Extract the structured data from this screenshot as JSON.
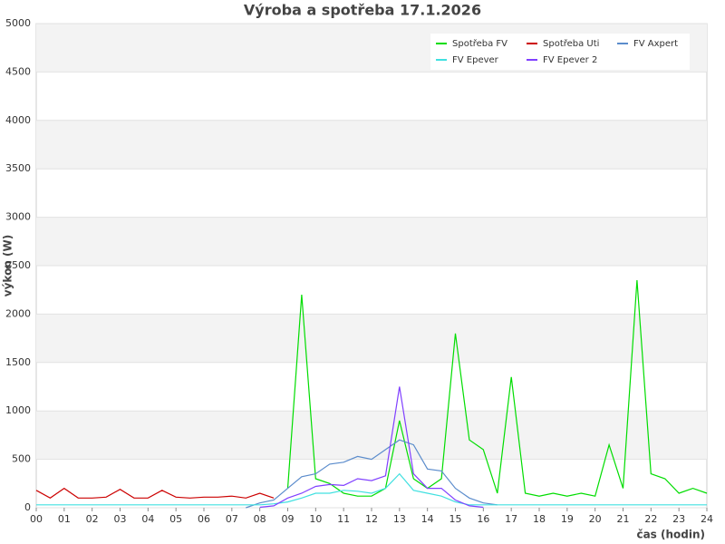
{
  "chart_data": {
    "type": "line",
    "title": "Výroba a spotřeba 17.1.2026",
    "x_label": "čas (hodin)",
    "y_label": "výkon (W)",
    "x": [
      0,
      0.5,
      1,
      1.5,
      2,
      2.5,
      3,
      3.5,
      4,
      4.5,
      5,
      5.5,
      6,
      6.5,
      7,
      7.5,
      8,
      8.5,
      9,
      9.5,
      10,
      10.5,
      11,
      11.5,
      12,
      12.5,
      13,
      13.5,
      14,
      14.5,
      15,
      15.5,
      16,
      16.5,
      17,
      17.5,
      18,
      18.5,
      19,
      19.5,
      20,
      20.5,
      21,
      21.5,
      22,
      22.5,
      23,
      23.5,
      24
    ],
    "series": [
      {
        "name": "Spotřeba FV",
        "color": "#00dd00",
        "values": [
          null,
          null,
          null,
          null,
          null,
          null,
          null,
          null,
          null,
          null,
          null,
          null,
          null,
          null,
          null,
          null,
          null,
          null,
          200,
          2200,
          300,
          250,
          150,
          120,
          120,
          200,
          900,
          300,
          200,
          300,
          1800,
          700,
          600,
          150,
          1350,
          150,
          120,
          150,
          120,
          150,
          120,
          650,
          200,
          2350,
          350,
          300,
          150,
          200,
          150
        ]
      },
      {
        "name": "Spotřeba Uti",
        "color": "#cc0000",
        "values": [
          180,
          100,
          200,
          100,
          100,
          110,
          190,
          100,
          100,
          180,
          110,
          100,
          110,
          110,
          120,
          100,
          150,
          100,
          null,
          null,
          null,
          null,
          null,
          null,
          null,
          null,
          null,
          null,
          null,
          null,
          null,
          null,
          null,
          null,
          null,
          null,
          null,
          null,
          null,
          null,
          null,
          null,
          null,
          null,
          null,
          null,
          null,
          null,
          null
        ]
      },
      {
        "name": "FV Axpert",
        "color": "#5b8ccc",
        "values": [
          null,
          null,
          null,
          null,
          null,
          null,
          null,
          null,
          null,
          null,
          null,
          null,
          null,
          null,
          null,
          0,
          50,
          80,
          200,
          320,
          350,
          450,
          470,
          530,
          500,
          600,
          700,
          650,
          400,
          380,
          200,
          100,
          50,
          30,
          null,
          null,
          null,
          null,
          null,
          null,
          null,
          null,
          null,
          null,
          null,
          null,
          null,
          null,
          null
        ]
      },
      {
        "name": "FV Epever",
        "color": "#40e0e0",
        "values": [
          30,
          30,
          30,
          30,
          30,
          30,
          30,
          30,
          30,
          30,
          30,
          30,
          30,
          30,
          30,
          30,
          30,
          40,
          60,
          100,
          150,
          150,
          180,
          170,
          150,
          200,
          350,
          180,
          150,
          120,
          60,
          30,
          30,
          30,
          30,
          30,
          30,
          30,
          30,
          30,
          30,
          30,
          30,
          30,
          30,
          30,
          30,
          30,
          30
        ]
      },
      {
        "name": "FV Epever 2",
        "color": "#8040ff",
        "values": [
          null,
          null,
          null,
          null,
          null,
          null,
          null,
          null,
          null,
          null,
          null,
          null,
          null,
          null,
          null,
          null,
          5,
          20,
          100,
          150,
          220,
          240,
          230,
          300,
          280,
          330,
          1250,
          350,
          200,
          200,
          80,
          20,
          5,
          null,
          null,
          null,
          null,
          null,
          null,
          null,
          null,
          null,
          null,
          null,
          null,
          null,
          null,
          null,
          null
        ]
      }
    ],
    "xlim": [
      0,
      24
    ],
    "xticks": [
      {
        "value": 0,
        "label": "00"
      },
      {
        "value": 1,
        "label": "01"
      },
      {
        "value": 2,
        "label": "02"
      },
      {
        "value": 3,
        "label": "03"
      },
      {
        "value": 4,
        "label": "04"
      },
      {
        "value": 5,
        "label": "05"
      },
      {
        "value": 6,
        "label": "06"
      },
      {
        "value": 7,
        "label": "07"
      },
      {
        "value": 8,
        "label": "08"
      },
      {
        "value": 9,
        "label": "09"
      },
      10,
      11,
      12,
      13,
      14,
      15,
      16,
      17,
      18,
      19,
      20,
      21,
      22,
      23,
      24
    ],
    "ylim": [
      0,
      5000
    ],
    "yticks": [
      0,
      500,
      1000,
      1500,
      2000,
      2500,
      3000,
      3500,
      4000,
      4500,
      5000
    ],
    "grid": true,
    "legend": "upper right"
  }
}
